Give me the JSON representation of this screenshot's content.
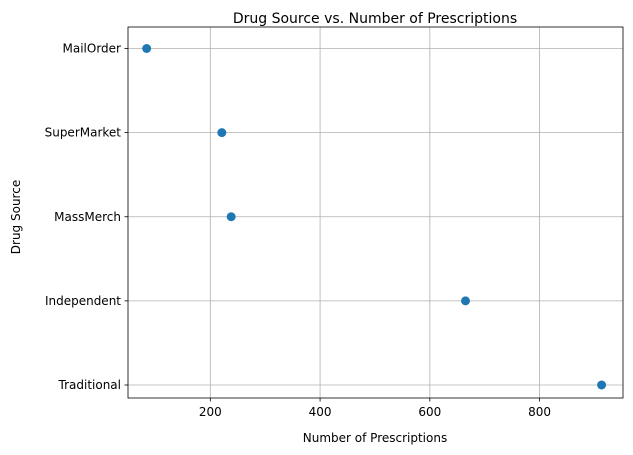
{
  "chart_data": {
    "type": "scatter",
    "title": "Drug Source vs. Number of Prescriptions",
    "xlabel": "Number of Prescriptions",
    "ylabel": "Drug Source",
    "xlim": [
      50,
      952
    ],
    "x_ticks": [
      200,
      400,
      600,
      800
    ],
    "categories": [
      "Traditional",
      "Independent",
      "MassMerch",
      "SuperMarket",
      "MailOrder"
    ],
    "points": [
      {
        "category": "MailOrder",
        "x": 84
      },
      {
        "category": "SuperMarket",
        "x": 221
      },
      {
        "category": "MassMerch",
        "x": 238
      },
      {
        "category": "Independent",
        "x": 665
      },
      {
        "category": "Traditional",
        "x": 913
      }
    ],
    "marker_color": "#1f77b4",
    "grid": true
  }
}
